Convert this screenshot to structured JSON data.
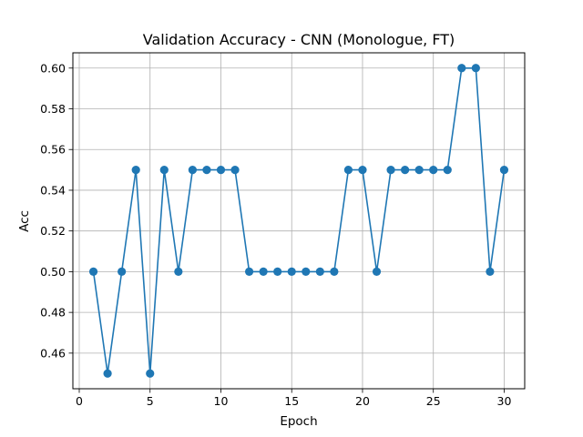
{
  "chart_data": {
    "type": "line",
    "title": "Validation Accuracy - CNN (Monologue, FT)",
    "xlabel": "Epoch",
    "ylabel": "Acc",
    "xlim": [
      -0.45,
      31.45
    ],
    "ylim": [
      0.4425,
      0.6075
    ],
    "xticks": [
      0,
      5,
      10,
      15,
      20,
      25,
      30
    ],
    "yticks": [
      0.46,
      0.48,
      0.5,
      0.52,
      0.54,
      0.56,
      0.58,
      0.6
    ],
    "grid": true,
    "series": [
      {
        "color": "#1f77b4",
        "marker": "circle",
        "x": [
          1,
          2,
          3,
          4,
          5,
          6,
          7,
          8,
          9,
          10,
          11,
          12,
          13,
          14,
          15,
          16,
          17,
          18,
          19,
          20,
          21,
          22,
          23,
          24,
          25,
          26,
          27,
          28,
          29,
          30
        ],
        "y": [
          0.5,
          0.45,
          0.5,
          0.55,
          0.45,
          0.55,
          0.5,
          0.55,
          0.55,
          0.55,
          0.55,
          0.5,
          0.5,
          0.5,
          0.5,
          0.5,
          0.5,
          0.5,
          0.55,
          0.55,
          0.5,
          0.55,
          0.55,
          0.55,
          0.55,
          0.55,
          0.6,
          0.6,
          0.5,
          0.55
        ]
      }
    ]
  }
}
